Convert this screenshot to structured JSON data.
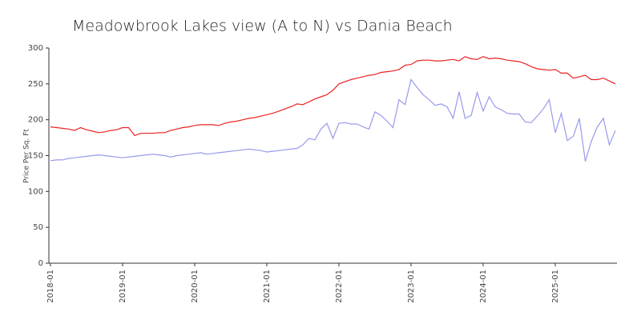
{
  "chart_data": {
    "type": "line",
    "title": "Meadowbrook Lakes view (A to N) vs Dania Beach",
    "y_label": "Price Per Sq. Ft",
    "categories": [
      "2018-01",
      null,
      null,
      null,
      null,
      null,
      null,
      null,
      null,
      null,
      null,
      null,
      "2019-01",
      null,
      null,
      null,
      null,
      null,
      null,
      null,
      null,
      null,
      null,
      null,
      "2020-01",
      null,
      null,
      null,
      null,
      null,
      null,
      null,
      null,
      null,
      null,
      null,
      "2021-01",
      null,
      null,
      null,
      null,
      null,
      null,
      null,
      null,
      null,
      null,
      null,
      "2022-01",
      null,
      null,
      null,
      null,
      null,
      null,
      null,
      null,
      null,
      null,
      null,
      "2023-01",
      null,
      null,
      null,
      null,
      null,
      null,
      null,
      null,
      null,
      null,
      null,
      "2024-01",
      null,
      null,
      null,
      null,
      null,
      null,
      null,
      null,
      null,
      null,
      null,
      "2025-01",
      null,
      null,
      null,
      null,
      null,
      null,
      null,
      null,
      null,
      null
    ],
    "series": [
      {
        "color": "#ee2222",
        "values": [
          190,
          189,
          188,
          187,
          185,
          189,
          186,
          184,
          182,
          183,
          185,
          186,
          189,
          189,
          178,
          181,
          181,
          181,
          182,
          182,
          185,
          187,
          189,
          190,
          192,
          193,
          193,
          193,
          192,
          195,
          197,
          198,
          200,
          202,
          203,
          205,
          207,
          209,
          212,
          215,
          218,
          222,
          221,
          225,
          229,
          232,
          235,
          241,
          250,
          253,
          256,
          258,
          260,
          262,
          263,
          266,
          267,
          268,
          270,
          276,
          277,
          282,
          283,
          283,
          282,
          282,
          283,
          284,
          282,
          288,
          285,
          284,
          288,
          285,
          286,
          285,
          283,
          282,
          281,
          278,
          274,
          271,
          270,
          269,
          270,
          265,
          265,
          258,
          260,
          262,
          256,
          256,
          258,
          254,
          250
        ]
      },
      {
        "color": "#9999ee",
        "values": [
          143,
          144,
          144,
          146,
          147,
          148,
          149,
          150,
          151,
          150,
          149,
          148,
          147,
          148,
          149,
          150,
          151,
          152,
          151,
          150,
          148,
          150,
          151,
          152,
          153,
          154,
          152,
          153,
          154,
          155,
          156,
          157,
          158,
          159,
          158,
          157,
          155,
          156,
          157,
          158,
          159,
          160,
          165,
          174,
          172,
          187,
          195,
          174,
          195,
          196,
          194,
          194,
          190,
          187,
          211,
          206,
          198,
          189,
          228,
          221,
          256,
          245,
          235,
          228,
          220,
          222,
          218,
          202,
          239,
          202,
          206,
          238,
          212,
          232,
          218,
          214,
          209,
          208,
          208,
          197,
          196,
          205,
          215,
          228,
          182,
          209,
          171,
          177,
          202,
          142,
          170,
          190,
          202,
          165,
          185
        ]
      }
    ],
    "ylim": [
      0,
      300
    ],
    "yticks": [
      0,
      50,
      100,
      150,
      200,
      250,
      300
    ]
  }
}
